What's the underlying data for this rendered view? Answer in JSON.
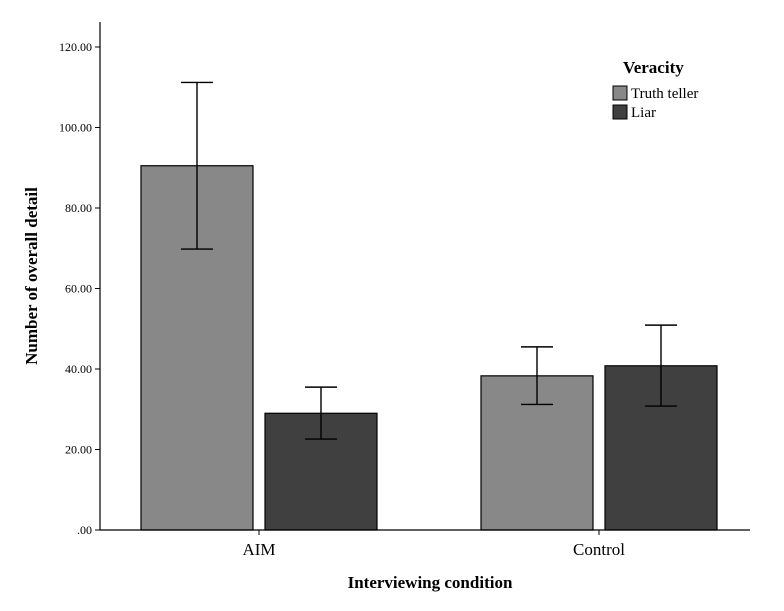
{
  "chart_data": {
    "type": "bar",
    "categories": [
      "AIM",
      "Control"
    ],
    "series": [
      {
        "name": "Truth teller",
        "color": "#888888",
        "values": [
          90.5,
          38.3
        ],
        "error_low": [
          69.8,
          31.2
        ],
        "error_high": [
          111.2,
          45.5
        ]
      },
      {
        "name": "Liar",
        "color": "#404040",
        "values": [
          29.0,
          40.8
        ],
        "error_low": [
          22.6,
          30.8
        ],
        "error_high": [
          35.5,
          50.9
        ]
      }
    ],
    "xlabel": "Interviewing condition",
    "ylabel": "Number of overall detail",
    "ylim": [
      0,
      120
    ],
    "yticks": [
      0,
      20,
      40,
      60,
      80,
      100,
      120
    ],
    "ytick_labels": [
      ".00",
      "20.00",
      "40.00",
      "60.00",
      "80.00",
      "100.00",
      "120.00"
    ],
    "grid": false,
    "legend": {
      "title": "Veracity",
      "position": "top-right"
    }
  }
}
